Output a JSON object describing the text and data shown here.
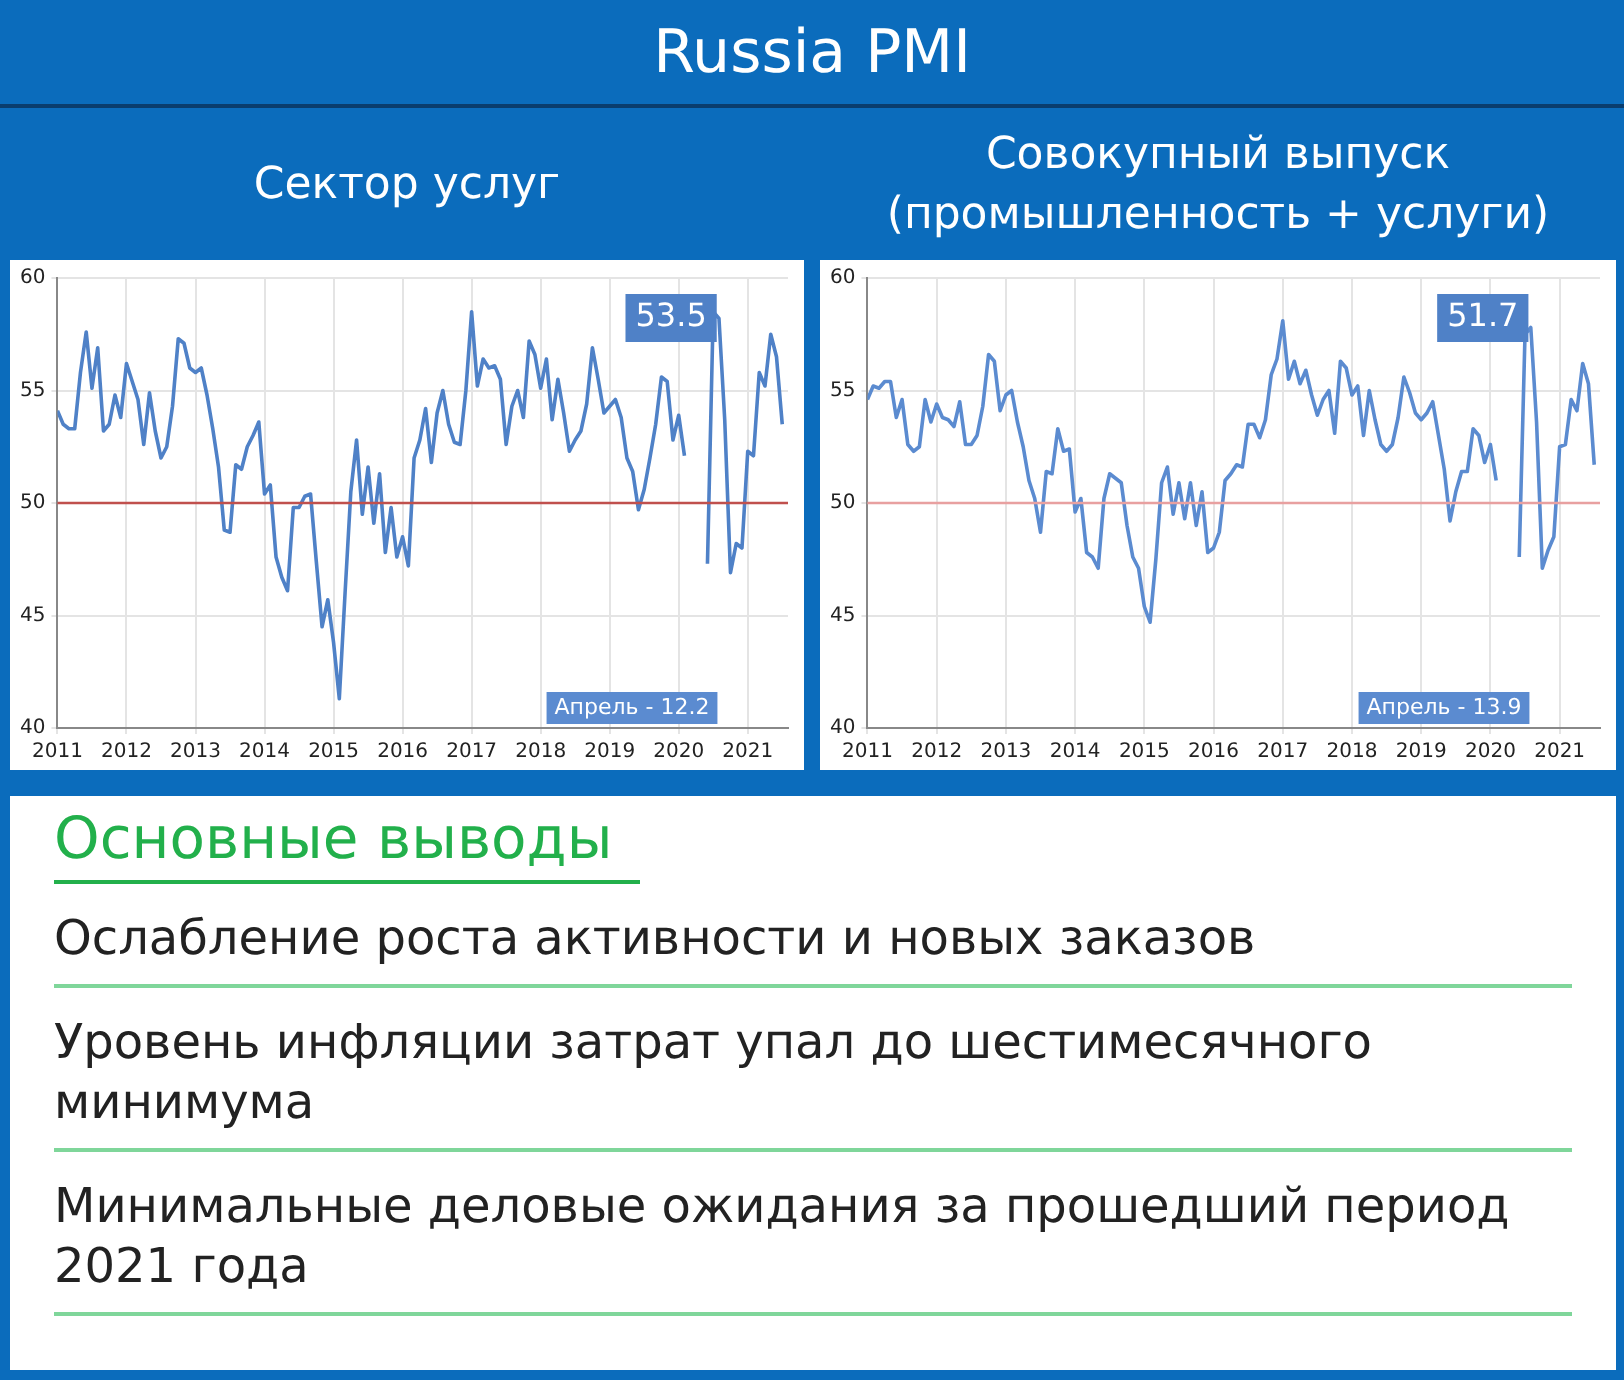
{
  "chart_data": [
    {
      "type": "other",
      "title": "Russia PMI"
    },
    {
      "type": "line",
      "title": "Сектор услуг",
      "color": "#4f81c7",
      "grid": true,
      "legend": false,
      "marker": "none",
      "line_style": "solid",
      "x": [
        "2011-01",
        "2011-02",
        "2011-03",
        "2011-04",
        "2011-05",
        "2011-06",
        "2011-07",
        "2011-08",
        "2011-09",
        "2011-10",
        "2011-11",
        "2011-12",
        "2012-01",
        "2012-02",
        "2012-03",
        "2012-04",
        "2012-05",
        "2012-06",
        "2012-07",
        "2012-08",
        "2012-09",
        "2012-10",
        "2012-11",
        "2012-12",
        "2013-01",
        "2013-02",
        "2013-03",
        "2013-04",
        "2013-05",
        "2013-06",
        "2013-07",
        "2013-08",
        "2013-09",
        "2013-10",
        "2013-11",
        "2013-12",
        "2014-01",
        "2014-02",
        "2014-03",
        "2014-04",
        "2014-05",
        "2014-06",
        "2014-07",
        "2014-08",
        "2014-09",
        "2014-10",
        "2014-11",
        "2014-12",
        "2015-01",
        "2015-02",
        "2015-03",
        "2015-04",
        "2015-05",
        "2015-06",
        "2015-07",
        "2015-08",
        "2015-09",
        "2015-10",
        "2015-11",
        "2015-12",
        "2016-01",
        "2016-02",
        "2016-03",
        "2016-04",
        "2016-05",
        "2016-06",
        "2016-07",
        "2016-08",
        "2016-09",
        "2016-10",
        "2016-11",
        "2016-12",
        "2017-01",
        "2017-02",
        "2017-03",
        "2017-04",
        "2017-05",
        "2017-06",
        "2017-07",
        "2017-08",
        "2017-09",
        "2017-10",
        "2017-11",
        "2017-12",
        "2018-01",
        "2018-02",
        "2018-03",
        "2018-04",
        "2018-05",
        "2018-06",
        "2018-07",
        "2018-08",
        "2018-09",
        "2018-10",
        "2018-11",
        "2018-12",
        "2019-01",
        "2019-02",
        "2019-03",
        "2019-04",
        "2019-05",
        "2019-06",
        "2019-07",
        "2019-08",
        "2019-09",
        "2019-10",
        "2019-11",
        "2019-12",
        "2020-01",
        "2020-02",
        "2020-03",
        "2020-04",
        "2020-05",
        "2020-06",
        "2020-07",
        "2020-08",
        "2020-09",
        "2020-10",
        "2020-11",
        "2020-12",
        "2021-01",
        "2021-02",
        "2021-03",
        "2021-04",
        "2021-05",
        "2021-06",
        "2021-07"
      ],
      "values": [
        54.1,
        53.5,
        53.3,
        53.3,
        55.8,
        57.6,
        55.1,
        56.9,
        53.2,
        53.5,
        54.8,
        53.8,
        56.2,
        55.4,
        54.6,
        52.6,
        54.9,
        53.2,
        52.0,
        52.5,
        54.3,
        57.3,
        57.1,
        56.0,
        55.8,
        56.0,
        54.8,
        53.3,
        51.6,
        48.8,
        48.7,
        51.7,
        51.5,
        52.5,
        53.0,
        53.6,
        50.4,
        50.8,
        47.6,
        46.7,
        46.1,
        49.8,
        49.8,
        50.3,
        50.4,
        47.4,
        44.5,
        45.7,
        43.8,
        41.3,
        46.0,
        50.5,
        52.8,
        49.5,
        51.6,
        49.1,
        51.3,
        47.8,
        49.8,
        47.6,
        48.5,
        47.2,
        52.0,
        52.8,
        54.2,
        51.8,
        54.0,
        55.0,
        53.5,
        52.7,
        52.6,
        55.0,
        58.5,
        55.2,
        56.4,
        56.0,
        56.1,
        55.5,
        52.6,
        54.3,
        55.0,
        53.8,
        57.2,
        56.6,
        55.1,
        56.4,
        53.7,
        55.5,
        54.0,
        52.3,
        52.8,
        53.2,
        54.4,
        56.9,
        55.5,
        54.0,
        54.3,
        54.6,
        53.8,
        52.0,
        51.4,
        49.7,
        50.6,
        52.0,
        53.5,
        55.6,
        55.4,
        52.8,
        53.9,
        52.1,
        null,
        null,
        null,
        47.3,
        58.5,
        58.2,
        53.7,
        46.9,
        48.2,
        48.0,
        52.3,
        52.1,
        55.8,
        55.2,
        57.5,
        56.5,
        53.5
      ],
      "xlim": [
        "2011-01",
        "2021-08"
      ],
      "xticks": [
        "2011",
        "2012",
        "2013",
        "2014",
        "2015",
        "2016",
        "2017",
        "2018",
        "2019",
        "2020",
        "2021"
      ],
      "ylim": [
        40,
        60
      ],
      "yticks": [
        40,
        45,
        50,
        55,
        60
      ],
      "ref_lines": [
        {
          "axis": "y",
          "value": 50,
          "color": "#c0504d"
        }
      ],
      "annotations": [
        "53.5",
        "Апрель - 12.2"
      ]
    },
    {
      "type": "line",
      "title": "Совокупный выпуск (промышленность + услуги)",
      "color": "#5b8bd0",
      "grid": true,
      "legend": false,
      "marker": "none",
      "line_style": "solid",
      "x": [
        "2011-01",
        "2011-02",
        "2011-03",
        "2011-04",
        "2011-05",
        "2011-06",
        "2011-07",
        "2011-08",
        "2011-09",
        "2011-10",
        "2011-11",
        "2011-12",
        "2012-01",
        "2012-02",
        "2012-03",
        "2012-04",
        "2012-05",
        "2012-06",
        "2012-07",
        "2012-08",
        "2012-09",
        "2012-10",
        "2012-11",
        "2012-12",
        "2013-01",
        "2013-02",
        "2013-03",
        "2013-04",
        "2013-05",
        "2013-06",
        "2013-07",
        "2013-08",
        "2013-09",
        "2013-10",
        "2013-11",
        "2013-12",
        "2014-01",
        "2014-02",
        "2014-03",
        "2014-04",
        "2014-05",
        "2014-06",
        "2014-07",
        "2014-08",
        "2014-09",
        "2014-10",
        "2014-11",
        "2014-12",
        "2015-01",
        "2015-02",
        "2015-03",
        "2015-04",
        "2015-05",
        "2015-06",
        "2015-07",
        "2015-08",
        "2015-09",
        "2015-10",
        "2015-11",
        "2015-12",
        "2016-01",
        "2016-02",
        "2016-03",
        "2016-04",
        "2016-05",
        "2016-06",
        "2016-07",
        "2016-08",
        "2016-09",
        "2016-10",
        "2016-11",
        "2016-12",
        "2017-01",
        "2017-02",
        "2017-03",
        "2017-04",
        "2017-05",
        "2017-06",
        "2017-07",
        "2017-08",
        "2017-09",
        "2017-10",
        "2017-11",
        "2017-12",
        "2018-01",
        "2018-02",
        "2018-03",
        "2018-04",
        "2018-05",
        "2018-06",
        "2018-07",
        "2018-08",
        "2018-09",
        "2018-10",
        "2018-11",
        "2018-12",
        "2019-01",
        "2019-02",
        "2019-03",
        "2019-04",
        "2019-05",
        "2019-06",
        "2019-07",
        "2019-08",
        "2019-09",
        "2019-10",
        "2019-11",
        "2019-12",
        "2020-01",
        "2020-02",
        "2020-03",
        "2020-04",
        "2020-05",
        "2020-06",
        "2020-07",
        "2020-08",
        "2020-09",
        "2020-10",
        "2020-11",
        "2020-12",
        "2021-01",
        "2021-02",
        "2021-03",
        "2021-04",
        "2021-05",
        "2021-06",
        "2021-07"
      ],
      "values": [
        54.6,
        55.2,
        55.1,
        55.4,
        55.4,
        53.8,
        54.6,
        52.6,
        52.3,
        52.5,
        54.6,
        53.6,
        54.4,
        53.8,
        53.7,
        53.4,
        54.5,
        52.6,
        52.6,
        53.0,
        54.3,
        56.6,
        56.3,
        54.1,
        54.8,
        55.0,
        53.6,
        52.5,
        51.0,
        50.2,
        48.7,
        51.4,
        51.3,
        53.3,
        52.3,
        52.4,
        49.6,
        50.2,
        47.8,
        47.6,
        47.1,
        50.2,
        51.3,
        51.1,
        50.9,
        49.0,
        47.6,
        47.1,
        45.4,
        44.7,
        47.5,
        50.9,
        51.6,
        49.5,
        50.9,
        49.3,
        50.9,
        49.0,
        50.5,
        47.8,
        48.0,
        48.7,
        51.0,
        51.3,
        51.7,
        51.6,
        53.5,
        53.5,
        52.9,
        53.7,
        55.7,
        56.4,
        58.1,
        55.5,
        56.3,
        55.3,
        55.9,
        54.8,
        53.9,
        54.6,
        55.0,
        53.1,
        56.3,
        56.0,
        54.8,
        55.2,
        53.0,
        55.0,
        53.7,
        52.6,
        52.3,
        52.6,
        53.8,
        55.6,
        54.9,
        54.0,
        53.7,
        54.0,
        54.5,
        53.0,
        51.5,
        49.2,
        50.5,
        51.4,
        51.4,
        53.3,
        53.0,
        51.8,
        52.6,
        51.0,
        null,
        null,
        null,
        47.6,
        57.5,
        57.8,
        53.6,
        47.1,
        47.9,
        48.5,
        52.5,
        52.6,
        54.6,
        54.1,
        56.2,
        55.3,
        51.7
      ],
      "xlim": [
        "2011-01",
        "2021-08"
      ],
      "xticks": [
        "2011",
        "2012",
        "2013",
        "2014",
        "2015",
        "2016",
        "2017",
        "2018",
        "2019",
        "2020",
        "2021"
      ],
      "ylim": [
        40,
        60
      ],
      "yticks": [
        40,
        45,
        50,
        55,
        60
      ],
      "ref_lines": [
        {
          "axis": "y",
          "value": 50,
          "color": "#e8a0a0"
        }
      ],
      "annotations": [
        "51.7",
        "Апрель - 13.9"
      ]
    },
    {
      "type": "other",
      "title": "Основные выводы",
      "annotations": [
        "Ослабление роста активности и новых заказов",
        "Уровень инфляции затрат упал до шестимесячного минимума",
        "Минимальные деловые ожидания за прошедший период 2021 года"
      ]
    }
  ]
}
